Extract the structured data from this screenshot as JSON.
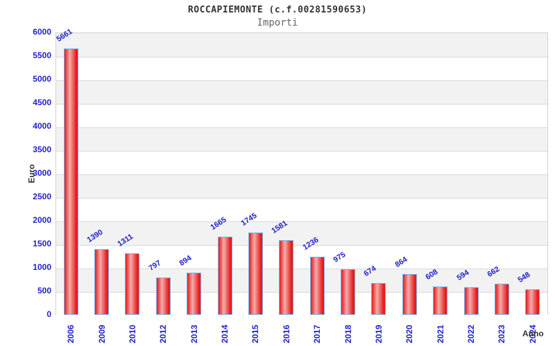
{
  "header": {
    "title": "ROCCAPIEMONTE (c.f.00281590653)",
    "subtitle": "Importi"
  },
  "chart_data": {
    "type": "bar",
    "title": "ROCCAPIEMONTE (c.f.00281590653)",
    "subtitle": "Importi",
    "xlabel": "Anno",
    "ylabel": "Euro",
    "categories": [
      "2006",
      "2009",
      "2010",
      "2012",
      "2013",
      "2014",
      "2015",
      "2016",
      "2017",
      "2018",
      "2019",
      "2020",
      "2021",
      "2022",
      "2023",
      "2024"
    ],
    "values": [
      5661,
      1390,
      1311,
      797,
      894,
      1665,
      1745,
      1581,
      1236,
      975,
      674,
      864,
      608,
      594,
      662,
      548
    ],
    "ylim": [
      0,
      6000
    ],
    "ytick_step": 500,
    "yticks": [
      0,
      500,
      1000,
      1500,
      2000,
      2500,
      3000,
      3500,
      4000,
      4500,
      5000,
      5500,
      6000
    ],
    "grid": "horizontal-bands",
    "legend": "none",
    "colors": {
      "bar_fill": "#e81919",
      "bar_highlight": "#f5acac",
      "bar_border": "#7db1e6",
      "value_label": "#2121cc",
      "tick_label": "#2121cc",
      "title_text": "#333333",
      "subtitle_text": "#666666",
      "band_gray": "#f2f2f2",
      "gridline": "#d9d9d9",
      "plot_border": "#d0d0d0",
      "axis_title_text": "#333333"
    }
  }
}
